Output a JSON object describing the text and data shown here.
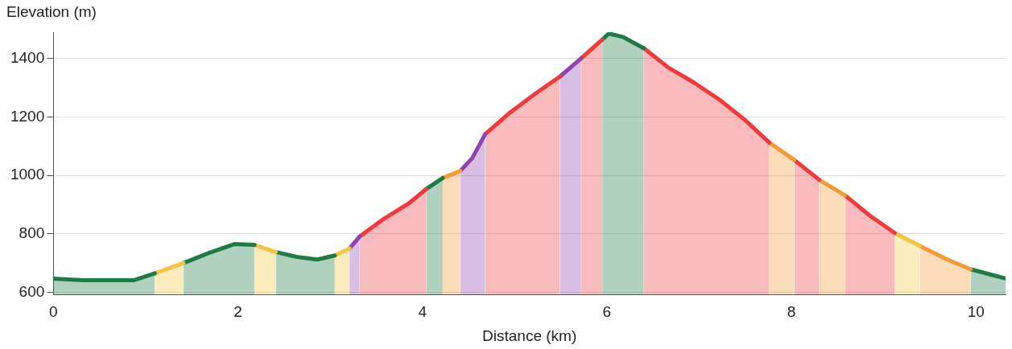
{
  "chart_data": {
    "type": "area",
    "xlabel": "Distance (km)",
    "ylabel": "Elevation (m)",
    "series": [
      {
        "color": "#1e7b45",
        "x": [
          0,
          0.33,
          0.87,
          1.1
        ],
        "values": [
          647,
          641,
          641,
          665
        ]
      },
      {
        "color": "#f5c542",
        "x": [
          1.1,
          1.41
        ],
        "values": [
          665,
          700
        ]
      },
      {
        "color": "#1e7b45",
        "x": [
          1.41,
          1.69,
          1.96,
          2.18
        ],
        "values": [
          700,
          735,
          765,
          762
        ]
      },
      {
        "color": "#f5c542",
        "x": [
          2.18,
          2.41
        ],
        "values": [
          762,
          738
        ]
      },
      {
        "color": "#1e7b45",
        "x": [
          2.41,
          2.64,
          2.86,
          3.05
        ],
        "values": [
          738,
          721,
          712,
          726
        ]
      },
      {
        "color": "#f5c542",
        "x": [
          3.05,
          3.21
        ],
        "values": [
          726,
          750
        ]
      },
      {
        "color": "#8e44ad",
        "x": [
          3.21,
          3.32
        ],
        "values": [
          750,
          791
        ]
      },
      {
        "color": "#ef3b3b",
        "x": [
          3.32,
          3.59,
          3.86,
          4.04
        ],
        "values": [
          791,
          853,
          906,
          953
        ]
      },
      {
        "color": "#1e7b45",
        "x": [
          4.04,
          4.22
        ],
        "values": [
          953,
          991
        ]
      },
      {
        "color": "#f39c34",
        "x": [
          4.22,
          4.41
        ],
        "values": [
          991,
          1015
        ]
      },
      {
        "color": "#8e44ad",
        "x": [
          4.41,
          4.54,
          4.68
        ],
        "values": [
          1015,
          1059,
          1141
        ]
      },
      {
        "color": "#ef3b3b",
        "x": [
          4.68,
          4.95,
          5.22,
          5.49
        ],
        "values": [
          1141,
          1215,
          1279,
          1338
        ]
      },
      {
        "color": "#8e44ad",
        "x": [
          5.49,
          5.72
        ],
        "values": [
          1338,
          1400
        ]
      },
      {
        "color": "#ef3b3b",
        "x": [
          5.72,
          5.95
        ],
        "values": [
          1400,
          1465
        ]
      },
      {
        "color": "#1e7b45",
        "x": [
          5.95,
          6.02,
          6.17,
          6.4
        ],
        "values": [
          1465,
          1485,
          1474,
          1435
        ]
      },
      {
        "color": "#ef3b3b",
        "x": [
          6.4,
          6.67,
          6.94,
          7.22,
          7.49,
          7.76
        ],
        "values": [
          1435,
          1368,
          1318,
          1259,
          1191,
          1112
        ]
      },
      {
        "color": "#f39c34",
        "x": [
          7.76,
          8.03
        ],
        "values": [
          1112,
          1053
        ]
      },
      {
        "color": "#ef3b3b",
        "x": [
          8.03,
          8.3
        ],
        "values": [
          1053,
          985
        ]
      },
      {
        "color": "#f39c34",
        "x": [
          8.3,
          8.58
        ],
        "values": [
          985,
          932
        ]
      },
      {
        "color": "#ef3b3b",
        "x": [
          8.58,
          8.85,
          9.12
        ],
        "values": [
          932,
          862,
          803
        ]
      },
      {
        "color": "#f5c542",
        "x": [
          9.12,
          9.39
        ],
        "values": [
          803,
          759
        ]
      },
      {
        "color": "#f39c34",
        "x": [
          9.39,
          9.67,
          9.94
        ],
        "values": [
          759,
          715,
          679
        ]
      },
      {
        "color": "#1e7b45",
        "x": [
          9.94,
          10.32
        ],
        "values": [
          679,
          647
        ]
      }
    ],
    "xlim": [
      0,
      10.32
    ],
    "ylim": [
      592,
      1490
    ],
    "xticks": [
      0,
      2,
      4,
      6,
      8,
      10
    ],
    "yticks": [
      600,
      800,
      1000,
      1200,
      1400
    ],
    "grid": "y"
  }
}
